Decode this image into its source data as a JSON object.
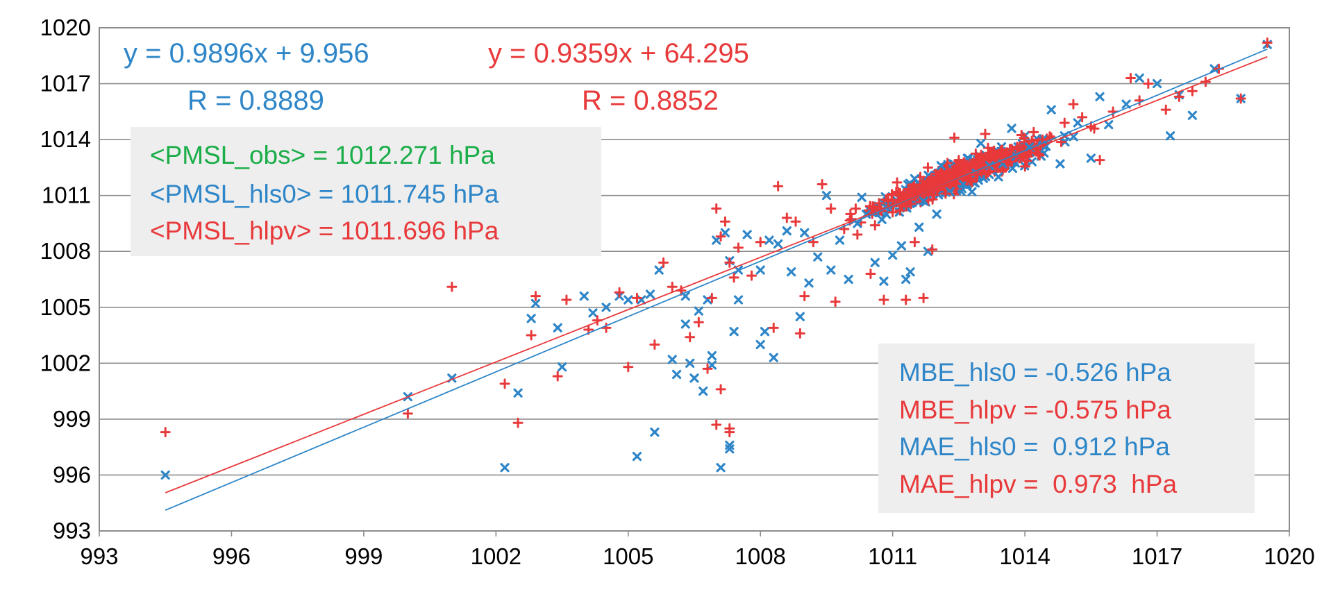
{
  "chart_data": {
    "type": "scatter",
    "title": "",
    "xlabel": "",
    "ylabel": "",
    "xlim": [
      993,
      1020
    ],
    "ylim": [
      993,
      1020
    ],
    "x_ticks": [
      993,
      996,
      999,
      1002,
      1005,
      1008,
      1011,
      1014,
      1017,
      1020
    ],
    "y_ticks": [
      993,
      996,
      999,
      1002,
      1005,
      1008,
      1011,
      1014,
      1017,
      1020
    ],
    "grid": "horizontal",
    "colors": {
      "hls0": "#2e86c8",
      "hlpv": "#e8393b",
      "obs": "#1aad48",
      "box": "#eeeeee",
      "grid": "#8c8c8c"
    },
    "series": [
      {
        "name": "hls0",
        "marker": "x",
        "points": [
          [
            994.5,
            996.0
          ],
          [
            1000.0,
            1000.2
          ],
          [
            1001.0,
            1001.2
          ],
          [
            1002.2,
            996.4
          ],
          [
            1002.5,
            1000.4
          ],
          [
            1002.8,
            1004.4
          ],
          [
            1002.9,
            1005.2
          ],
          [
            1003.4,
            1003.9
          ],
          [
            1003.5,
            1001.8
          ],
          [
            1004.0,
            1005.6
          ],
          [
            1004.2,
            1004.7
          ],
          [
            1004.5,
            1005.0
          ],
          [
            1004.8,
            1005.6
          ],
          [
            1005.0,
            1005.4
          ],
          [
            1005.2,
            997.0
          ],
          [
            1005.3,
            1005.4
          ],
          [
            1005.5,
            1005.7
          ],
          [
            1005.6,
            998.3
          ],
          [
            1005.7,
            1007.0
          ],
          [
            1006.0,
            1002.2
          ],
          [
            1006.1,
            1001.4
          ],
          [
            1006.3,
            1004.1
          ],
          [
            1006.3,
            1005.6
          ],
          [
            1006.4,
            1002.0
          ],
          [
            1006.5,
            1001.2
          ],
          [
            1006.6,
            1004.8
          ],
          [
            1006.7,
            1000.5
          ],
          [
            1006.8,
            1005.4
          ],
          [
            1006.9,
            1001.9
          ],
          [
            1006.9,
            1002.4
          ],
          [
            1007.0,
            1008.6
          ],
          [
            1007.1,
            996.4
          ],
          [
            1007.2,
            1009.0
          ],
          [
            1007.3,
            1007.5
          ],
          [
            1007.3,
            997.4
          ],
          [
            1007.3,
            997.6
          ],
          [
            1007.4,
            1003.7
          ],
          [
            1007.5,
            1005.4
          ],
          [
            1007.5,
            1007.0
          ],
          [
            1007.7,
            1008.9
          ],
          [
            1008.0,
            1007.0
          ],
          [
            1008.0,
            1003.0
          ],
          [
            1008.1,
            1003.7
          ],
          [
            1008.2,
            1008.6
          ],
          [
            1008.3,
            1002.3
          ],
          [
            1008.4,
            1008.4
          ],
          [
            1008.6,
            1009.1
          ],
          [
            1008.7,
            1006.9
          ],
          [
            1008.9,
            1004.5
          ],
          [
            1009.0,
            1009.0
          ],
          [
            1009.1,
            1006.3
          ],
          [
            1009.3,
            1007.7
          ],
          [
            1009.5,
            1011.0
          ],
          [
            1009.6,
            1007.0
          ],
          [
            1009.8,
            1008.6
          ],
          [
            1010.0,
            1006.5
          ],
          [
            1010.2,
            1009.5
          ],
          [
            1010.4,
            1010.0
          ],
          [
            1010.6,
            1007.4
          ],
          [
            1010.8,
            1006.4
          ],
          [
            1011.0,
            1007.8
          ],
          [
            1011.2,
            1008.3
          ],
          [
            1011.3,
            1006.5
          ],
          [
            1011.4,
            1006.9
          ],
          [
            1011.6,
            1009.3
          ],
          [
            1011.8,
            1008.0
          ],
          [
            1012.0,
            1010.0
          ],
          [
            1012.3,
            1011.2
          ],
          [
            1012.6,
            1011.6
          ],
          [
            1012.9,
            1012.2
          ],
          [
            1013.2,
            1012.6
          ],
          [
            1013.5,
            1012.7
          ],
          [
            1013.8,
            1013.1
          ],
          [
            1014.1,
            1013.6
          ],
          [
            1014.4,
            1014.0
          ],
          [
            1014.8,
            1012.7
          ],
          [
            1015.2,
            1014.9
          ],
          [
            1015.5,
            1013.0
          ],
          [
            1015.9,
            1014.8
          ],
          [
            1016.3,
            1015.9
          ],
          [
            1016.6,
            1017.3
          ],
          [
            1017.0,
            1017.0
          ],
          [
            1017.3,
            1014.2
          ],
          [
            1017.5,
            1016.4
          ],
          [
            1017.8,
            1015.3
          ],
          [
            1018.3,
            1017.8
          ],
          [
            1018.9,
            1016.2
          ],
          [
            1019.5,
            1019.1
          ],
          [
            1013.7,
            1014.6
          ],
          [
            1012.1,
            1012.6
          ],
          [
            1010.9,
            1010.5
          ],
          [
            1011.5,
            1011.9
          ],
          [
            1013.0,
            1013.8
          ],
          [
            1014.6,
            1015.6
          ],
          [
            1012.8,
            1011.2
          ],
          [
            1010.3,
            1010.9
          ],
          [
            1011.7,
            1010.7
          ],
          [
            1013.4,
            1012.0
          ],
          [
            1014.9,
            1014.2
          ],
          [
            1015.7,
            1016.3
          ]
        ]
      },
      {
        "name": "hlpv",
        "marker": "+",
        "points": [
          [
            994.5,
            998.3
          ],
          [
            1000.0,
            999.3
          ],
          [
            1001.0,
            1006.1
          ],
          [
            1002.2,
            1000.9
          ],
          [
            1002.5,
            998.8
          ],
          [
            1002.8,
            1003.5
          ],
          [
            1002.9,
            1005.6
          ],
          [
            1003.4,
            1001.3
          ],
          [
            1003.6,
            1005.4
          ],
          [
            1004.1,
            1003.8
          ],
          [
            1004.3,
            1004.3
          ],
          [
            1004.5,
            1003.9
          ],
          [
            1004.8,
            1005.8
          ],
          [
            1005.0,
            1001.8
          ],
          [
            1005.2,
            1005.5
          ],
          [
            1005.6,
            1003.0
          ],
          [
            1005.8,
            1007.4
          ],
          [
            1006.0,
            1006.1
          ],
          [
            1006.2,
            1005.9
          ],
          [
            1006.4,
            1003.4
          ],
          [
            1006.6,
            1004.2
          ],
          [
            1006.8,
            1001.7
          ],
          [
            1006.9,
            1005.5
          ],
          [
            1007.0,
            1010.3
          ],
          [
            1007.0,
            998.7
          ],
          [
            1007.1,
            1000.6
          ],
          [
            1007.2,
            1009.6
          ],
          [
            1007.3,
            998.5
          ],
          [
            1007.3,
            998.3
          ],
          [
            1007.4,
            1006.6
          ],
          [
            1007.5,
            1008.2
          ],
          [
            1007.8,
            1006.7
          ],
          [
            1008.0,
            1008.5
          ],
          [
            1008.3,
            1003.9
          ],
          [
            1008.4,
            1011.5
          ],
          [
            1008.6,
            1009.8
          ],
          [
            1008.9,
            1003.6
          ],
          [
            1009.0,
            1005.6
          ],
          [
            1009.2,
            1008.5
          ],
          [
            1009.4,
            1011.6
          ],
          [
            1009.7,
            1005.3
          ],
          [
            1009.9,
            1009.2
          ],
          [
            1010.2,
            1008.9
          ],
          [
            1010.5,
            1006.8
          ],
          [
            1010.8,
            1005.4
          ],
          [
            1011.0,
            1010.1
          ],
          [
            1011.3,
            1005.4
          ],
          [
            1011.5,
            1008.5
          ],
          [
            1011.7,
            1005.5
          ],
          [
            1011.9,
            1008.1
          ],
          [
            1012.1,
            1012.0
          ],
          [
            1012.4,
            1014.1
          ],
          [
            1012.7,
            1011.8
          ],
          [
            1013.0,
            1012.5
          ],
          [
            1013.3,
            1013.4
          ],
          [
            1013.6,
            1012.8
          ],
          [
            1013.9,
            1013.0
          ],
          [
            1014.2,
            1014.4
          ],
          [
            1014.6,
            1014.1
          ],
          [
            1014.9,
            1014.9
          ],
          [
            1015.3,
            1015.2
          ],
          [
            1015.7,
            1012.9
          ],
          [
            1016.0,
            1015.5
          ],
          [
            1016.4,
            1017.3
          ],
          [
            1016.8,
            1017.0
          ],
          [
            1017.2,
            1015.6
          ],
          [
            1017.5,
            1016.3
          ],
          [
            1017.8,
            1016.6
          ],
          [
            1018.1,
            1017.1
          ],
          [
            1018.4,
            1017.8
          ],
          [
            1018.9,
            1016.2
          ],
          [
            1019.5,
            1019.2
          ],
          [
            1013.7,
            1013.5
          ],
          [
            1012.2,
            1011.1
          ],
          [
            1011.1,
            1011.7
          ],
          [
            1010.6,
            1009.4
          ],
          [
            1012.9,
            1012.1
          ],
          [
            1014.4,
            1014.0
          ],
          [
            1015.1,
            1015.9
          ],
          [
            1016.6,
            1016.1
          ],
          [
            1008.8,
            1009.6
          ],
          [
            1009.6,
            1010.3
          ],
          [
            1010.9,
            1010.7
          ],
          [
            1013.1,
            1014.3
          ],
          [
            1011.8,
            1012.5
          ],
          [
            1012.5,
            1012.9
          ],
          [
            1014.0,
            1013.2
          ],
          [
            1015.5,
            1014.7
          ],
          [
            1007.1,
            1008.8
          ],
          [
            1007.3,
            1007.4
          ]
        ]
      }
    ],
    "dense_clusters": [
      {
        "series": "hls0",
        "center": [
          1012.5,
          1012.0
        ],
        "spread_x": 1.6,
        "spread_y": 1.0,
        "count": 340
      },
      {
        "series": "hlpv",
        "center": [
          1012.6,
          1012.2
        ],
        "spread_x": 1.6,
        "spread_y": 0.95,
        "count": 420
      }
    ],
    "regression_lines": [
      {
        "series": "hls0",
        "slope": 0.9896,
        "intercept": 9.956,
        "x_range": [
          994.5,
          1019.5
        ]
      },
      {
        "series": "hlpv",
        "slope": 0.9359,
        "intercept": 64.295,
        "x_range": [
          994.5,
          1019.5
        ]
      }
    ],
    "annotations": {
      "eq_hls0": "y = 0.9896x + 9.956",
      "r_hls0": "R = 0.8889",
      "eq_hlpv": "y = 0.9359x + 64.295",
      "r_hlpv": "R = 0.8852",
      "mean_box": {
        "obs": "<PMSL_obs> = 1012.271 hPa",
        "hls0": "<PMSL_hls0> = 1011.745 hPa",
        "hlpv": "<PMSL_hlpv> = 1011.696 hPa"
      },
      "error_box": {
        "mbe_hls0": "MBE_hls0 = -0.526 hPa",
        "mbe_hlpv": "MBE_hlpv = -0.575 hPa",
        "mae_hls0": "MAE_hls0 =  0.912 hPa",
        "mae_hlpv": "MAE_hlpv =  0.973  hPa"
      }
    }
  }
}
